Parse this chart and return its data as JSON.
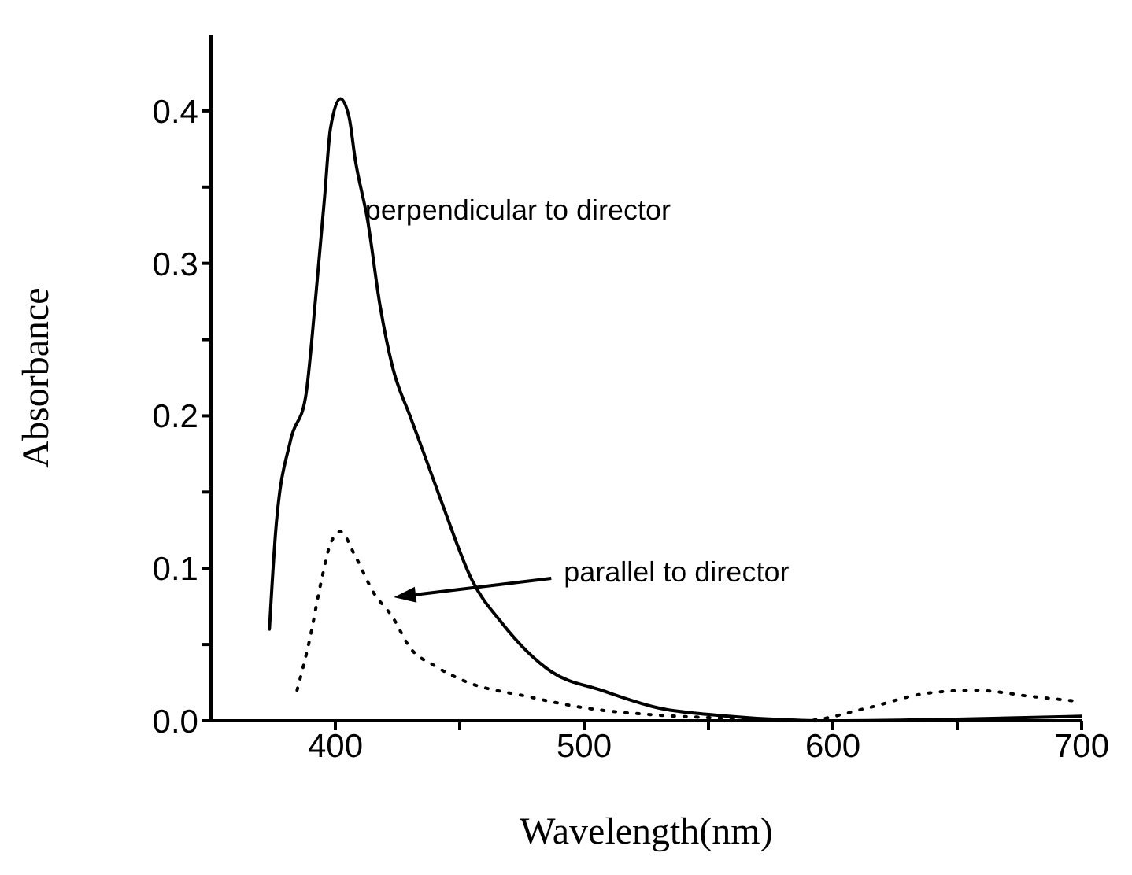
{
  "chart_data": {
    "type": "line",
    "xlabel": "Wavelength(nm)",
    "ylabel": "Absorbance",
    "xlim": [
      350,
      700
    ],
    "ylim": [
      0,
      0.45
    ],
    "xticks": [
      400,
      {
        "value": 450,
        "label": null
      },
      500,
      {
        "value": 550,
        "label": null
      },
      600,
      {
        "value": 650,
        "label": null
      },
      700
    ],
    "yticks": [
      {
        "value": 0,
        "label": "0.0"
      },
      {
        "value": 0.05,
        "label": null
      },
      {
        "value": 0.1,
        "label": "0.1"
      },
      {
        "value": 0.15,
        "label": null
      },
      {
        "value": 0.2,
        "label": "0.2"
      },
      {
        "value": 0.25,
        "label": null
      },
      {
        "value": 0.3,
        "label": "0.3"
      },
      {
        "value": 0.35,
        "label": null
      },
      {
        "value": 0.4,
        "label": "0.4"
      }
    ],
    "grid": false,
    "legend": false,
    "marker": "none",
    "annotations": [
      "perpendicular to director",
      "parallel to director"
    ],
    "series": [
      {
        "color": "#000000",
        "line_style": "solid",
        "x": [
          373.5,
          376,
          382,
          388,
          392,
          395.7,
          398,
          402,
          405.5,
          408,
          413,
          418,
          423,
          430,
          435,
          442.6,
          455,
          467,
          487,
          507,
          531,
          551,
          576,
          600,
          650,
          700
        ],
        "values": [
          0.06,
          0.124,
          0.184,
          0.212,
          0.276,
          0.344,
          0.388,
          0.408,
          0.396,
          0.368,
          0.328,
          0.272,
          0.232,
          0.2,
          0.178,
          0.144,
          0.092,
          0.064,
          0.032,
          0.02,
          0.008,
          0.004,
          0.001,
          0,
          0.001,
          0.003
        ]
      },
      {
        "color": "#000000",
        "line_style": "dotted",
        "x": [
          384.6,
          389.5,
          394.4,
          398,
          402,
          408,
          415.4,
          423,
          430,
          440,
          452,
          477,
          502,
          527,
          551,
          588,
          613,
          637.6,
          657,
          679.6,
          697
        ],
        "values": [
          0.02,
          0.052,
          0.092,
          0.116,
          0.124,
          0.108,
          0.084,
          0.068,
          0.048,
          0.036,
          0.026,
          0.016,
          0.008,
          0.004,
          0.002,
          0,
          0.008,
          0.018,
          0.02,
          0.016,
          0.013
        ]
      }
    ]
  }
}
